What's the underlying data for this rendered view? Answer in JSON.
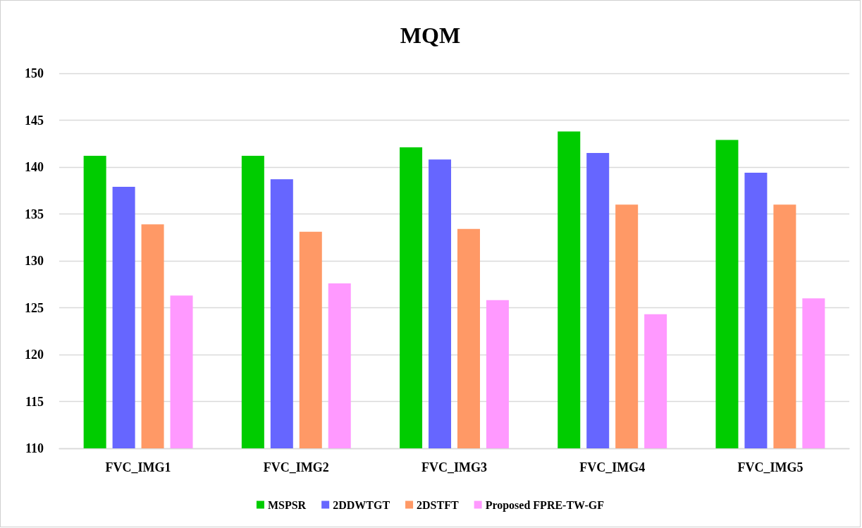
{
  "chart_data": {
    "type": "bar",
    "title": "MQM",
    "categories": [
      "FVC_IMG1",
      "FVC_IMG2",
      "FVC_IMG3",
      "FVC_IMG4",
      "FVC_IMG5"
    ],
    "series": [
      {
        "name": "MSPSR",
        "color": "#00cc00",
        "values": [
          141.2,
          141.2,
          142.1,
          143.8,
          142.9
        ]
      },
      {
        "name": "2DDWTGT",
        "color": "#6666ff",
        "values": [
          137.9,
          138.7,
          140.8,
          141.5,
          139.4
        ]
      },
      {
        "name": "2DSTFT",
        "color": "#ff9966",
        "values": [
          133.9,
          133.1,
          133.4,
          136.0,
          136.0
        ]
      },
      {
        "name": "Proposed FPRE-TW-GF",
        "color": "#ff99ff",
        "values": [
          126.3,
          127.6,
          125.8,
          124.3,
          126.0
        ]
      }
    ],
    "ylim": [
      110,
      150
    ],
    "yticks": [
      110,
      115,
      120,
      125,
      130,
      135,
      140,
      145,
      150
    ],
    "grid": "y",
    "legend": "bottom"
  }
}
